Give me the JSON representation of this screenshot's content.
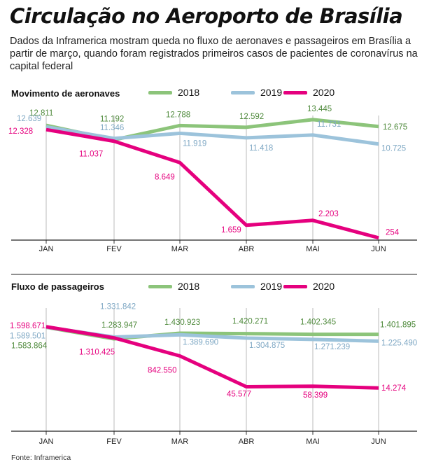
{
  "title": "Circulação no Aeroporto de Brasília",
  "subtitle": "Dados da Inframerica mostram queda no fluxo de aeronaves e passageiros em Brasília a partir de março, quando foram registrados primeiros casos de pacientes de coronavírus na capital federal",
  "source": "Fonte: Inframerica",
  "colors": {
    "2018": "#8cc47a",
    "2019": "#9cc3db",
    "2020": "#e5007e"
  },
  "label_colors": {
    "2018": "#4f8a3c",
    "2019": "#7fa8c4",
    "2020": "#e5007e"
  },
  "chart_data": [
    {
      "type": "line",
      "title": "Movimento de aeronaves",
      "categories": [
        "JAN",
        "FEV",
        "MAR",
        "ABR",
        "MAI",
        "JUN"
      ],
      "ylim": [
        0,
        13500
      ],
      "grid": "vertical",
      "legend": "top",
      "series": [
        {
          "name": "2018",
          "values": [
            12811,
            11192,
            12788,
            12592,
            13445,
            12675
          ],
          "labels": [
            "12.811",
            "11.192",
            "12.788",
            "12.592",
            "13.445",
            "12.675"
          ]
        },
        {
          "name": "2019",
          "values": [
            12639,
            11346,
            11919,
            11418,
            11731,
            10725
          ],
          "labels": [
            "12.639",
            "11.346",
            "11.919",
            "11.418",
            "11.731",
            "10.725"
          ]
        },
        {
          "name": "2020",
          "values": [
            12328,
            11037,
            8649,
            1659,
            2203,
            254
          ],
          "labels": [
            "12.328",
            "11.037",
            "8.649",
            "1.659",
            "2.203",
            "254"
          ]
        }
      ]
    },
    {
      "type": "line",
      "title": "Fluxo de passageiros",
      "categories": [
        "JAN",
        "FEV",
        "MAR",
        "ABR",
        "MAI",
        "JUN"
      ],
      "grid": "vertical",
      "legend": "top",
      "series": [
        {
          "name": "2018",
          "values": [
            1583864,
            1283947,
            1430923,
            1420271,
            1402345,
            1401895
          ],
          "labels": [
            "1.583.864",
            "1.283.947",
            "1.430.923",
            "1.420.271",
            "1.402.345",
            "1.401.895"
          ]
        },
        {
          "name": "2019",
          "values": [
            1589501,
            1331842,
            1389690,
            1304875,
            1271239,
            1225490
          ],
          "labels": [
            "1.589.501",
            "1.331.842",
            "1.389.690",
            "1.304.875",
            "1.271.239",
            "1.225.490"
          ]
        },
        {
          "name": "2020",
          "values": [
            1598671,
            1310425,
            842550,
            45577,
            58399,
            14274
          ],
          "labels": [
            "1.598.671",
            "1.310.425",
            "842.550",
            "45.577",
            "58.399",
            "14.274"
          ]
        }
      ]
    }
  ]
}
